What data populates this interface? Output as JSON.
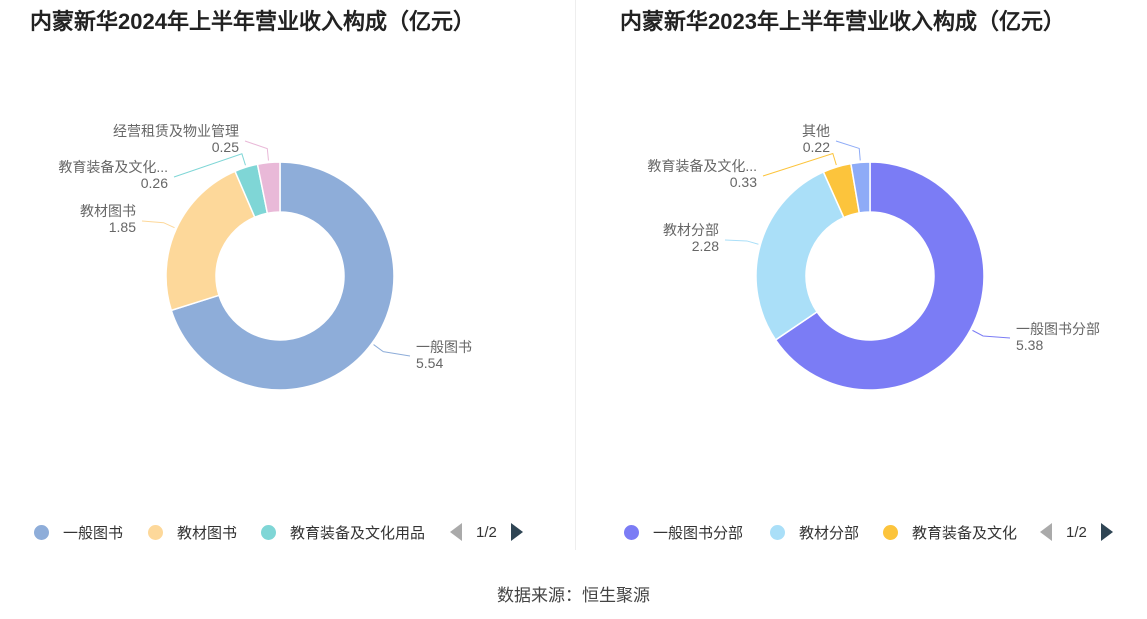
{
  "footer": {
    "source": "数据来源：恒生聚源"
  },
  "chart_data": [
    {
      "type": "pie",
      "title": "内蒙新华2024年上半年营业收入构成（亿元）",
      "categories": [
        "一般图书",
        "教材图书",
        "教育装备及文化用品",
        "经营租赁及物业管理"
      ],
      "display_labels": [
        "一般图书",
        "教材图书",
        "教育装备及文化...",
        "经营租赁及物业管理"
      ],
      "values": [
        5.54,
        1.85,
        0.26,
        0.25
      ],
      "value_labels": [
        "5.54",
        "1.85",
        "0.26",
        "0.25"
      ],
      "colors": [
        "#8eadd9",
        "#fdd89a",
        "#7fd6d6",
        "#e9b9d8"
      ],
      "legend": {
        "placement": "bottom",
        "items": [
          "一般图书",
          "教材图书",
          "教育装备及文化用品"
        ],
        "page": "1/2"
      }
    },
    {
      "type": "pie",
      "title": "内蒙新华2023年上半年营业收入构成（亿元）",
      "categories": [
        "一般图书分部",
        "教材分部",
        "教育装备及文化",
        "其他"
      ],
      "display_labels": [
        "一般图书分部",
        "教材分部",
        "教育装备及文化...",
        "其他"
      ],
      "values": [
        5.38,
        2.28,
        0.33,
        0.22
      ],
      "value_labels": [
        "5.38",
        "2.28",
        "0.33",
        "0.22"
      ],
      "colors": [
        "#7b7cf5",
        "#aadff8",
        "#fcc43c",
        "#8eabf7"
      ],
      "legend": {
        "placement": "bottom",
        "items": [
          "一般图书分部",
          "教材分部",
          "教育装备及文化"
        ],
        "page": "1/2"
      }
    }
  ]
}
